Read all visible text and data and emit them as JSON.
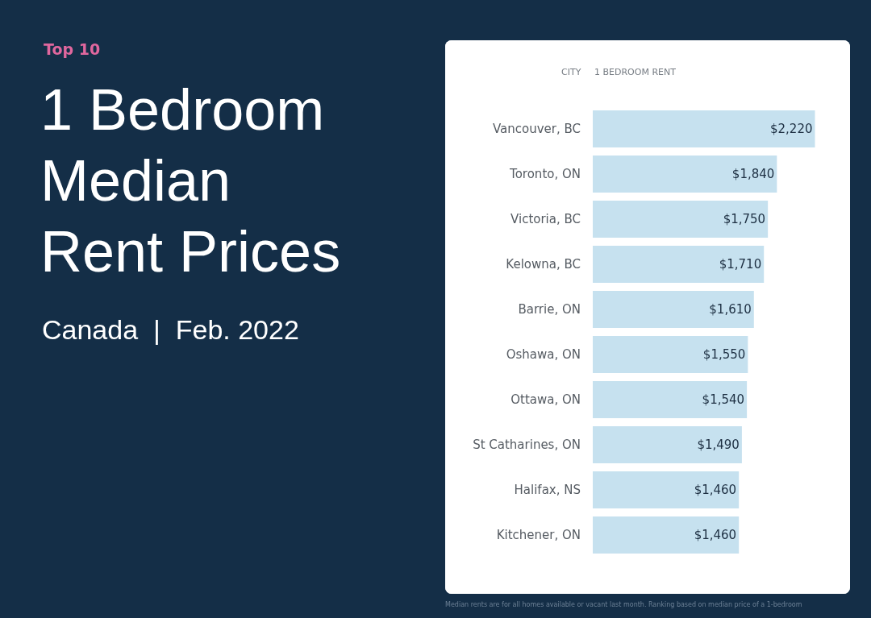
{
  "chart_data": {
    "type": "bar",
    "orientation": "horizontal",
    "title": "1 Bedroom Median Rent Prices",
    "subtitle": "Canada  |  Feb. 2022",
    "ylabel": "CITY",
    "xlabel": "1 BEDROOM RENT",
    "categories": [
      "Vancouver, BC",
      "Toronto, ON",
      "Victoria, BC",
      "Kelowna, BC",
      "Barrie, ON",
      "Oshawa, ON",
      "Ottawa, ON",
      "St Catharines, ON",
      "Halifax, NS",
      "Kitchener, ON"
    ],
    "values": [
      2220,
      1840,
      1750,
      1710,
      1610,
      1550,
      1540,
      1490,
      1460,
      1460
    ],
    "value_labels": [
      "$2,220",
      "$1,840",
      "$1,750",
      "$1,710",
      "$1,610",
      "$1,550",
      "$1,540",
      "$1,490",
      "$1,460",
      "$1,460"
    ],
    "color": "#c6e1ef",
    "tick_labels": "y",
    "annotations": [
      "Top 10",
      "Median rents are for all homes available or vacant last month. Ranking based on median price of a 1-bedroom"
    ]
  }
}
